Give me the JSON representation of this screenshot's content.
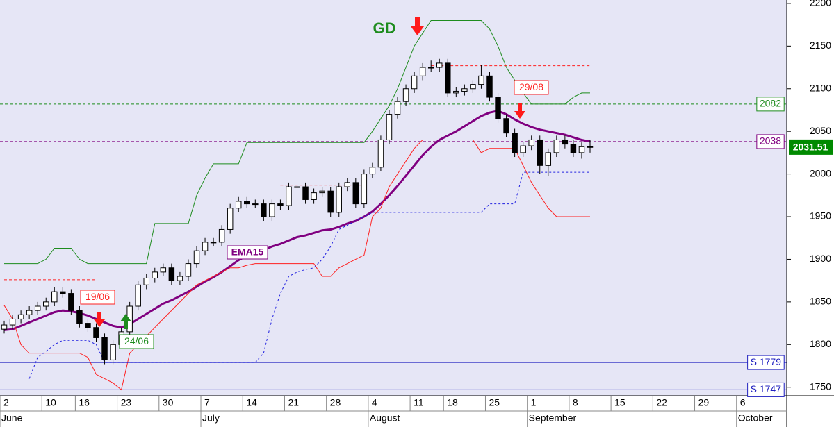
{
  "chart_data": {
    "type": "candlestick",
    "categories": [
      "2",
      null,
      null,
      null,
      null,
      "10",
      null,
      null,
      null,
      "16",
      null,
      null,
      null,
      null,
      "23",
      null,
      null,
      null,
      null,
      "30",
      null,
      null,
      null,
      null,
      "7",
      null,
      null,
      null,
      null,
      "14",
      null,
      null,
      null,
      null,
      "21",
      null,
      null,
      null,
      null,
      "28",
      null,
      null,
      null,
      null,
      "4",
      null,
      null,
      null,
      null,
      "11",
      null,
      null,
      null,
      "18",
      null,
      null,
      null,
      null,
      "25",
      null,
      null,
      null,
      null,
      "1",
      null,
      null,
      null,
      null,
      "8",
      null,
      null,
      null,
      null,
      "15",
      null,
      null,
      null,
      null,
      "22",
      null,
      null,
      null,
      null,
      "29",
      null,
      null,
      null,
      null,
      "6",
      null,
      null,
      null,
      null,
      null
    ],
    "months": [
      "June",
      null,
      null,
      null,
      null,
      null,
      null,
      null,
      null,
      null,
      null,
      null,
      null,
      null,
      null,
      null,
      null,
      null,
      null,
      null,
      null,
      null,
      null,
      null,
      "July",
      null,
      null,
      null,
      null,
      null,
      null,
      null,
      null,
      null,
      null,
      null,
      null,
      null,
      null,
      null,
      null,
      null,
      null,
      null,
      "August",
      null,
      null,
      null,
      null,
      null,
      null,
      null,
      null,
      null,
      null,
      null,
      null,
      null,
      null,
      null,
      null,
      null,
      null,
      "September",
      null,
      null,
      null,
      null,
      null,
      null,
      null,
      null,
      null,
      null,
      null,
      null,
      null,
      null,
      null,
      null,
      null,
      null,
      null,
      null,
      null,
      null,
      null,
      null,
      "October",
      null,
      null,
      null,
      null,
      null
    ],
    "candles": {
      "open": [
        1818,
        1823,
        1830,
        1835,
        1840,
        1845,
        1850,
        1862,
        1860,
        1840,
        1825,
        1820,
        1808,
        1782,
        1800,
        1815,
        1845,
        1870,
        1878,
        1885,
        1890,
        1875,
        1880,
        1895,
        1910,
        1920,
        1920,
        1935,
        1960,
        1968,
        1965,
        1965,
        1950,
        1965,
        1963,
        1985,
        1985,
        1970,
        1978,
        1980,
        1955,
        1985,
        1990,
        1965,
        2000,
        2008,
        2040,
        2070,
        2085,
        2100,
        2115,
        2125,
        2125,
        2130,
        2095,
        2097,
        2100,
        2105,
        2115,
        2090,
        2065,
        2048,
        2025,
        2033,
        2040,
        2010,
        2025,
        2040,
        2035,
        2025,
        2032,
        null,
        null,
        null,
        null,
        null,
        null,
        null,
        null,
        null,
        null,
        null,
        null,
        null,
        null,
        null,
        null,
        null,
        null,
        null,
        null,
        null,
        null,
        null
      ],
      "high": [
        1828,
        1835,
        1840,
        1845,
        1850,
        1855,
        1867,
        1867,
        1865,
        1845,
        1830,
        1825,
        1813,
        1805,
        1820,
        1850,
        1875,
        1883,
        1890,
        1895,
        1895,
        1885,
        1900,
        1915,
        1925,
        1925,
        1940,
        1965,
        1973,
        1973,
        1970,
        1970,
        1970,
        1970,
        1990,
        1990,
        1990,
        1983,
        1985,
        1985,
        1990,
        1995,
        1995,
        2005,
        2013,
        2045,
        2075,
        2090,
        2105,
        2120,
        2130,
        2133,
        2135,
        2135,
        2102,
        2105,
        2110,
        2128,
        2120,
        2095,
        2070,
        2053,
        2038,
        2045,
        2045,
        2030,
        2045,
        2045,
        2040,
        2037,
        2040,
        null,
        null,
        null,
        null,
        null,
        null,
        null,
        null,
        null,
        null,
        null,
        null,
        null,
        null,
        null,
        null,
        null,
        null,
        null,
        null,
        null,
        null,
        null
      ],
      "low": [
        1813,
        1818,
        1825,
        1830,
        1835,
        1840,
        1845,
        1855,
        1835,
        1820,
        1815,
        1803,
        1777,
        1777,
        1795,
        1810,
        1840,
        1865,
        1873,
        1880,
        1870,
        1870,
        1875,
        1890,
        1905,
        1915,
        1915,
        1930,
        1955,
        1960,
        1960,
        1945,
        1945,
        1958,
        1958,
        1980,
        1965,
        1965,
        1973,
        1950,
        1950,
        1980,
        1960,
        1960,
        1995,
        2003,
        2035,
        2065,
        2080,
        2095,
        2110,
        2120,
        2120,
        2090,
        2090,
        2092,
        2095,
        2100,
        2085,
        2060,
        2043,
        2020,
        2020,
        2028,
        2000,
        1998,
        2020,
        2030,
        2020,
        2018,
        2025,
        null,
        null,
        null,
        null,
        null,
        null,
        null,
        null,
        null,
        null,
        null,
        null,
        null,
        null,
        null,
        null,
        null,
        null,
        null,
        null,
        null,
        null,
        null
      ],
      "close": [
        1823,
        1830,
        1835,
        1840,
        1845,
        1850,
        1862,
        1860,
        1840,
        1825,
        1820,
        1808,
        1782,
        1800,
        1815,
        1845,
        1870,
        1878,
        1885,
        1890,
        1875,
        1880,
        1895,
        1910,
        1920,
        1920,
        1935,
        1960,
        1968,
        1965,
        1965,
        1950,
        1965,
        1963,
        1985,
        1985,
        1970,
        1978,
        1980,
        1955,
        1985,
        1990,
        1965,
        2000,
        2008,
        2040,
        2070,
        2085,
        2100,
        2115,
        2125,
        2125,
        2130,
        2095,
        2097,
        2100,
        2105,
        2115,
        2090,
        2065,
        2048,
        2025,
        2033,
        2040,
        2010,
        2025,
        2040,
        2035,
        2025,
        2032,
        2031.51,
        null,
        null,
        null,
        null,
        null,
        null,
        null,
        null,
        null,
        null,
        null,
        null,
        null,
        null,
        null,
        null,
        null,
        null,
        null,
        null,
        null,
        null,
        null
      ]
    },
    "lines": [
      {
        "name": "EMA15",
        "color": "#800080",
        "style": "solid",
        "width": 3,
        "values": [
          1817,
          1818,
          1822,
          1826,
          1830,
          1834,
          1838,
          1840,
          1839,
          1837,
          1834,
          1830,
          1826,
          1822,
          1820,
          1824,
          1830,
          1836,
          1842,
          1848,
          1852,
          1857,
          1862,
          1868,
          1874,
          1879,
          1885,
          1892,
          1899,
          1904,
          1908,
          1911,
          1915,
          1918,
          1922,
          1926,
          1928,
          1931,
          1934,
          1935,
          1938,
          1942,
          1945,
          1950,
          1956,
          1965,
          1975,
          1986,
          1998,
          2010,
          2022,
          2032,
          2040,
          2045,
          2050,
          2056,
          2062,
          2068,
          2072,
          2074,
          2070,
          2064,
          2059,
          2055,
          2052,
          2050,
          2048,
          2046,
          2043,
          2040,
          2038,
          null,
          null,
          null,
          null,
          null,
          null,
          null,
          null,
          null,
          null,
          null,
          null,
          null,
          null,
          null,
          null,
          null,
          null,
          null,
          null,
          null,
          null,
          null
        ]
      },
      {
        "color": "#1e8c1e",
        "style": "solid",
        "width": 1,
        "values": [
          1895,
          1895,
          1895,
          1895,
          1895,
          1900,
          1913,
          1913,
          1913,
          1900,
          1895,
          1895,
          1895,
          1895,
          1895,
          1895,
          1895,
          1895,
          1942,
          1942,
          1942,
          1942,
          1942,
          1975,
          1995,
          2012,
          2012,
          2012,
          2012,
          2037,
          2037,
          2037,
          2037,
          2037,
          2037,
          2037,
          2037,
          2037,
          2037,
          2037,
          2037,
          2037,
          2037,
          2037,
          2050,
          2065,
          2080,
          2100,
          2125,
          2150,
          2165,
          2180,
          2180,
          2180,
          2180,
          2180,
          2180,
          2180,
          2170,
          2150,
          2125,
          2110,
          2095,
          2082,
          2082,
          2082,
          2082,
          2082,
          2090,
          2095,
          2095,
          null,
          null,
          null,
          null,
          null,
          null,
          null,
          null,
          null,
          null,
          null,
          null,
          null,
          null,
          null,
          null,
          null,
          null,
          null,
          null,
          null,
          null,
          null
        ]
      },
      {
        "color": "#ff2020",
        "style": "solid",
        "width": 1,
        "values": [
          1846,
          1830,
          1800,
          1790,
          1790,
          1790,
          1790,
          1790,
          1790,
          1790,
          1785,
          1765,
          1760,
          1755,
          1747,
          1790,
          1800,
          1810,
          1820,
          1830,
          1840,
          1850,
          1860,
          1870,
          1875,
          1880,
          1885,
          1890,
          1890,
          1893,
          1895,
          1895,
          1895,
          1895,
          1895,
          1895,
          1895,
          1895,
          1880,
          1880,
          1890,
          1895,
          1900,
          1905,
          1950,
          1960,
          1985,
          2000,
          2015,
          2030,
          2040,
          2040,
          2040,
          2040,
          2040,
          2040,
          2040,
          2025,
          2030,
          2030,
          2030,
          2030,
          2010,
          1990,
          1975,
          1960,
          1950,
          1950,
          1950,
          1950,
          1950,
          null,
          null,
          null,
          null,
          null,
          null,
          null,
          null,
          null,
          null,
          null,
          null,
          null,
          null,
          null,
          null,
          null,
          null,
          null,
          null,
          null,
          null,
          null
        ]
      },
      {
        "color": "#2020e0",
        "style": "dotted",
        "width": 1,
        "values": [
          null,
          null,
          null,
          1760,
          1785,
          1792,
          1800,
          1805,
          1805,
          1805,
          1805,
          1800,
          1779,
          1779,
          1779,
          1779,
          1779,
          1779,
          1779,
          1779,
          1779,
          1779,
          1779,
          1779,
          1779,
          1779,
          1779,
          1779,
          1779,
          1779,
          1779,
          1790,
          1830,
          1860,
          1880,
          1885,
          1888,
          1890,
          1900,
          1915,
          1935,
          1940,
          1945,
          1950,
          1955,
          1955,
          1955,
          1955,
          1955,
          1955,
          1955,
          1955,
          1955,
          1955,
          1955,
          1955,
          1955,
          1955,
          1965,
          1965,
          1965,
          1965,
          2002,
          2002,
          2002,
          2002,
          2002,
          2002,
          2002,
          2002,
          2002,
          null,
          null,
          null,
          null,
          null,
          null,
          null,
          null,
          null,
          null,
          null,
          null,
          null,
          null,
          null,
          null,
          null,
          null,
          null,
          null,
          null,
          null,
          null
        ]
      },
      {
        "color": "#ff2020",
        "style": "dashed",
        "width": 1,
        "values": [
          1876,
          1876,
          1876,
          1876,
          1876,
          1876,
          1876,
          1876,
          1876,
          1876,
          1876,
          1876,
          null,
          null,
          null,
          null,
          null,
          null,
          null,
          null,
          null,
          null,
          null,
          null,
          null,
          null,
          null,
          null,
          null,
          null,
          null,
          null,
          null,
          1987,
          1987,
          1987,
          1987,
          1987,
          1987,
          1987,
          1987,
          1987,
          1987,
          1987,
          null,
          null,
          null,
          null,
          null,
          null,
          null,
          2127,
          2127,
          2127,
          2127,
          2127,
          2127,
          2127,
          2127,
          2127,
          2127,
          2127,
          2127,
          2127,
          2127,
          2127,
          2127,
          2127,
          2127,
          2127,
          2127,
          null,
          null,
          null,
          null,
          null,
          null,
          null,
          null,
          null,
          null,
          null,
          null,
          null,
          null,
          null,
          null,
          null,
          null,
          null,
          null,
          null,
          null,
          null
        ]
      }
    ],
    "levels": [
      {
        "value": 2082,
        "label": "2082",
        "color": "#1e8c1e",
        "style": "dashed"
      },
      {
        "value": 2038,
        "label": "2038",
        "color": "#800080",
        "style": "dashed"
      },
      {
        "value": 1779,
        "label": "S 1779",
        "color": "#2020c0",
        "style": "solid"
      },
      {
        "value": 1747,
        "label": "S 1747",
        "color": "#2020c0",
        "style": "solid"
      }
    ],
    "annotations": [
      "GD",
      "19/06",
      "24/06",
      "29/08"
    ],
    "ylim": [
      1740,
      2204
    ],
    "yticks": [
      1750,
      1800,
      1850,
      1900,
      1950,
      2000,
      2050,
      2100,
      2150,
      2200
    ],
    "grid": false
  }
}
